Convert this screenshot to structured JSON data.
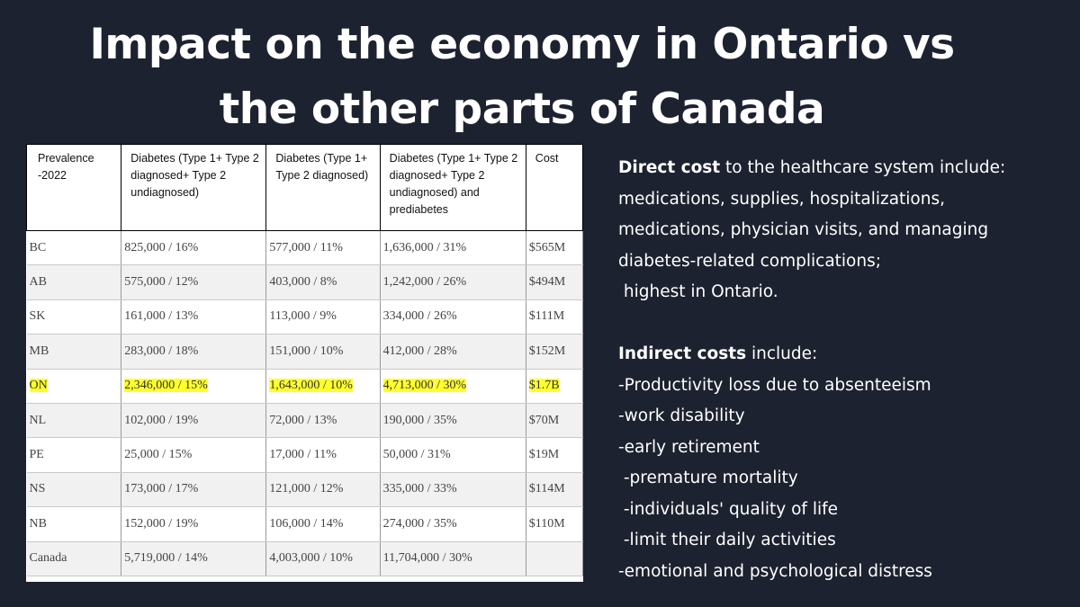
{
  "title": {
    "line1": "Impact on the economy in Ontario vs",
    "line2": "the other parts of Canada"
  },
  "table": {
    "headers": [
      "Prevalence -2022",
      "Diabetes (Type 1+ Type 2 diagnosed+ Type 2 undiagnosed)",
      "Diabetes (Type 1+ Type 2 diagnosed)",
      "Diabetes (Type 1+ Type 2 diagnosed+ Type 2 undiagnosed) and prediabetes",
      "Cost"
    ],
    "rows": [
      {
        "region": "BC",
        "c1": "825,000 / 16%",
        "c2": "577,000 / 11%",
        "c3": "1,636,000 / 31%",
        "cost": "$565M"
      },
      {
        "region": "AB",
        "c1": "575,000 / 12%",
        "c2": "403,000 / 8%",
        "c3": "1,242,000 / 26%",
        "cost": "$494M"
      },
      {
        "region": "SK",
        "c1": "161,000 / 13%",
        "c2": "113,000 / 9%",
        "c3": "334,000 / 26%",
        "cost": "$111M"
      },
      {
        "region": "MB",
        "c1": "283,000 / 18%",
        "c2": "151,000 / 10%",
        "c3": "412,000 / 28%",
        "cost": "$152M"
      },
      {
        "region": "ON",
        "c1": "2,346,000 / 15%",
        "c2": "1,643,000 / 10%",
        "c3": "4,713,000 / 30%",
        "cost": "$1.7B"
      },
      {
        "region": "NL",
        "c1": "102,000 / 19%",
        "c2": "72,000 / 13%",
        "c3": "190,000 / 35%",
        "cost": "$70M"
      },
      {
        "region": "PE",
        "c1": "25,000 / 15%",
        "c2": "17,000 / 11%",
        "c3": "50,000 / 31%",
        "cost": "$19M"
      },
      {
        "region": "NS",
        "c1": "173,000 / 17%",
        "c2": "121,000 / 12%",
        "c3": "335,000 / 33%",
        "cost": "$114M"
      },
      {
        "region": "NB",
        "c1": "152,000 / 19%",
        "c2": "106,000 / 14%",
        "c3": "274,000 / 35%",
        "cost": "$110M"
      },
      {
        "region": "Canada",
        "c1": "5,719,000 / 14%",
        "c2": "4,003,000 / 10%",
        "c3": "11,704,000 / 30%",
        "cost": ""
      }
    ],
    "highlight_row": "ON",
    "highlight_color": "#ffff2e"
  },
  "direct": {
    "bold": "Direct cost",
    "rest": " to the healthcare system include:",
    "lines": [
      "medications, supplies, hospitalizations,",
      "medications, physician visits, and managing",
      "diabetes-related complications;",
      " highest in Ontario."
    ]
  },
  "indirect": {
    "bold": "Indirect costs",
    "rest": " include:",
    "lines": [
      "-Productivity loss due to absenteeism",
      "-work disability",
      "-early retirement",
      " -premature mortality",
      " -individuals' quality of life",
      " -limit their daily activities",
      "-emotional and psychological distress"
    ]
  },
  "colors": {
    "background": "#1d2230",
    "text": "#ffffff"
  }
}
